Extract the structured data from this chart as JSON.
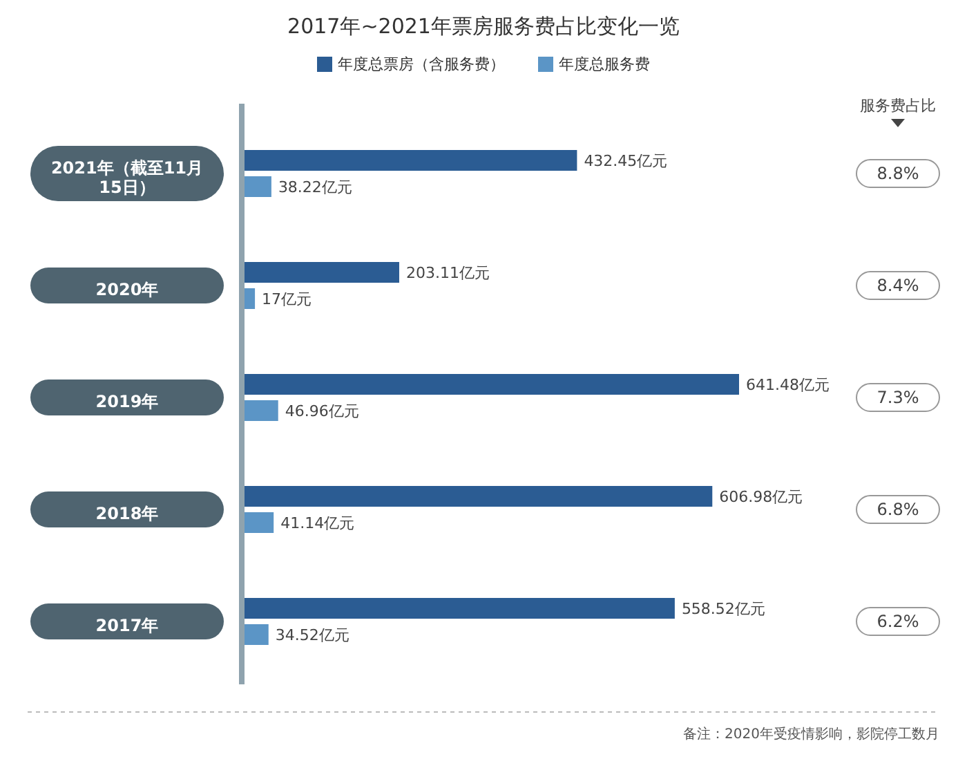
{
  "chart_data": {
    "type": "bar",
    "orientation": "horizontal",
    "title": "2017年~2021年票房服务费占比变化一览",
    "categories": [
      "2021年（截至11月15日）",
      "2020年",
      "2019年",
      "2018年",
      "2017年"
    ],
    "legend": "top",
    "series": [
      {
        "name": "年度总票房（含服务费）",
        "color": "#2b5c93",
        "values": [
          432.45,
          203.11,
          641.48,
          606.98,
          558.52
        ],
        "value_labels": [
          "432.45亿元",
          "203.11亿元",
          "641.48亿元",
          "606.98亿元",
          "558.52亿元"
        ]
      },
      {
        "name": "年度总服务费",
        "color": "#5b95c6",
        "values": [
          38.22,
          17,
          46.96,
          41.14,
          34.52
        ],
        "value_labels": [
          "38.22亿元",
          "17亿元",
          "46.96亿元",
          "41.14亿元",
          "34.52亿元"
        ]
      }
    ],
    "annotations": [
      "服务费占比",
      "8.8%",
      "8.4%",
      "7.3%",
      "6.8%",
      "6.2%",
      "备注：2020年受疫情影响，影院停工数月"
    ]
  }
}
